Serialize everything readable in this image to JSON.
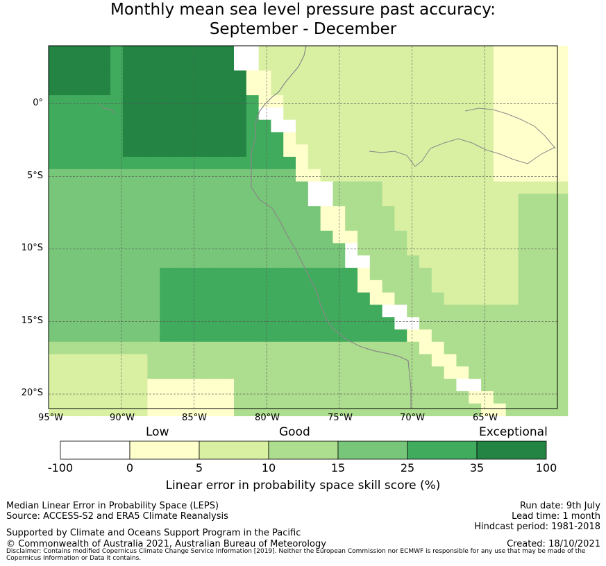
{
  "title": {
    "line1": "Monthly mean sea level pressure past accuracy:",
    "line2": "September - December"
  },
  "map": {
    "lon_range": [
      -95,
      -60
    ],
    "lat_range": [
      -21,
      4
    ],
    "lat_labels": [
      "0°",
      "5°S",
      "10°S",
      "15°S",
      "20°S"
    ],
    "lat_values": [
      0,
      -5,
      -10,
      -15,
      -20
    ],
    "lon_labels": [
      "95°W",
      "90°W",
      "85°W",
      "80°W",
      "75°W",
      "70°W",
      "65°W"
    ],
    "lon_values": [
      -95,
      -90,
      -85,
      -80,
      -75,
      -70,
      -65
    ],
    "grid": true
  },
  "colorbar": {
    "categories": [
      "Low",
      "Good",
      "Exceptional"
    ],
    "ticks": [
      "-100",
      "0",
      "5",
      "10",
      "15",
      "25",
      "35",
      "100"
    ],
    "colors": [
      "#ffffff",
      "#ffffcc",
      "#d9f0a3",
      "#addd8e",
      "#78c679",
      "#41ab5d",
      "#238443"
    ],
    "title": "Linear error in probability space skill score (%)"
  },
  "footer": {
    "left1": "Median Linear Error in Probability Space (LEPS)",
    "left2": "Source: ACCESS-S2 and ERA5 Climate Reanalysis",
    "left3": "Supported by Climate and Oceans Support Program in the Pacific",
    "left4": "© Commonwealth of Australia 2021, Australian Bureau of Meteorology",
    "right1": "Run date: 9th July",
    "right2": "Lead time: 1 month",
    "right3": "Hindcast period: 1981-2018",
    "right4": "Created: 18/10/2021",
    "disclaimer": "Disclaimer: Contains modified Copernicus Climate Change Service Information [2019]. Neither the European Commission nor ECMWF is responsible for any use that may be made of the Copernicus Information or Data it contains."
  }
}
